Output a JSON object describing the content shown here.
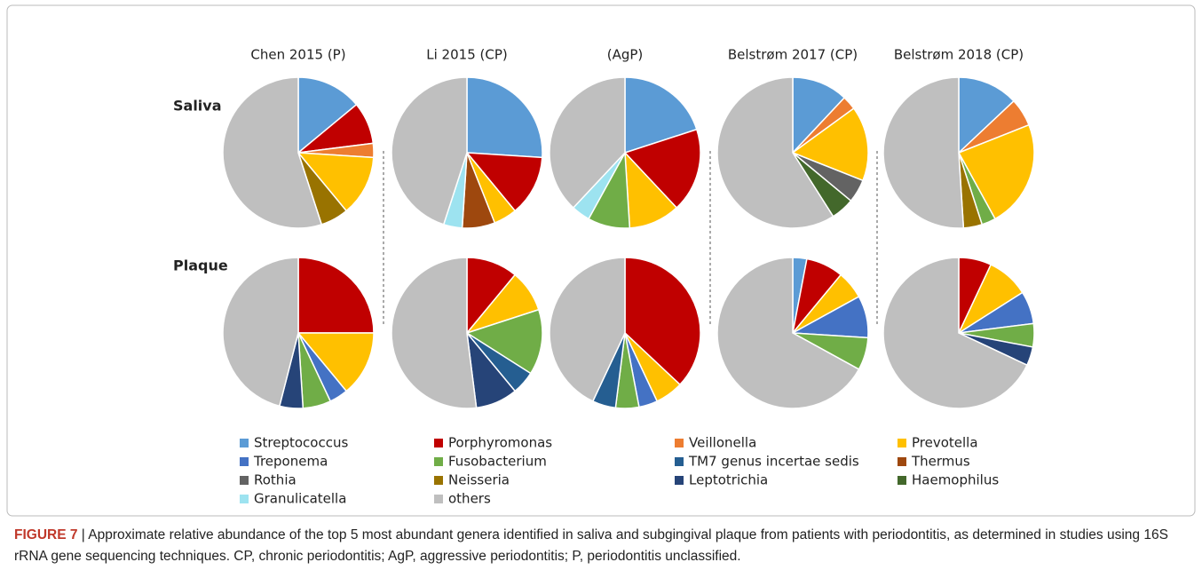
{
  "chart_data": {
    "type": "pie",
    "columns": [
      "Chen 2015 (P)",
      "Li 2015 (CP)",
      "(AgP)",
      "Belstrøm 2017 (CP)",
      "Belstrøm 2018 (CP)"
    ],
    "categories": [
      "Streptococcus",
      "Porphyromonas",
      "Veillonella",
      "Prevotella",
      "Treponema",
      "Fusobacterium",
      "TM7 genus incertae sedis",
      "Thermus",
      "Rothia",
      "Neisseria",
      "Leptotrichia",
      "Haemophilus",
      "Granulicatella",
      "others"
    ],
    "colors": [
      "#5b9bd5",
      "#c00000",
      "#ed7d31",
      "#ffc000",
      "#4472c4",
      "#70ad47",
      "#255e91",
      "#9e480e",
      "#636363",
      "#997300",
      "#264478",
      "#43682b",
      "#9de3f0",
      "#bfbfbf"
    ],
    "series": [
      {
        "name": "Saliva",
        "values": [
          [
            14,
            9,
            3,
            13,
            null,
            null,
            null,
            null,
            null,
            6,
            null,
            null,
            null,
            55
          ],
          [
            26,
            13,
            null,
            5,
            null,
            null,
            null,
            7,
            null,
            null,
            null,
            null,
            4,
            45
          ],
          [
            20,
            18,
            null,
            11,
            null,
            9,
            null,
            null,
            null,
            null,
            null,
            null,
            4,
            38
          ],
          [
            12,
            null,
            3,
            16,
            null,
            null,
            null,
            null,
            5,
            null,
            null,
            5,
            null,
            59
          ],
          [
            13,
            null,
            6,
            23,
            null,
            3,
            null,
            null,
            null,
            4,
            null,
            null,
            null,
            51
          ]
        ]
      },
      {
        "name": "Plaque",
        "values": [
          [
            null,
            25,
            null,
            14,
            4,
            6,
            null,
            null,
            null,
            null,
            5,
            null,
            null,
            46
          ],
          [
            null,
            11,
            null,
            9,
            null,
            14,
            5,
            null,
            null,
            null,
            9,
            null,
            null,
            52
          ],
          [
            null,
            37,
            null,
            6,
            4,
            5,
            5,
            null,
            null,
            null,
            null,
            null,
            null,
            43
          ],
          [
            3,
            8,
            null,
            6,
            9,
            7,
            null,
            null,
            null,
            null,
            null,
            null,
            null,
            67
          ],
          [
            null,
            7,
            null,
            9,
            7,
            5,
            null,
            null,
            null,
            null,
            4,
            null,
            null,
            68
          ]
        ]
      }
    ]
  },
  "caption": {
    "label": "FIGURE 7",
    "text": "| Approximate relative abundance of the top 5 most abundant genera identified in saliva and subgingival plaque from patients with periodontitis, as determined in studies using 16S rRNA gene sequencing techniques. CP, chronic periodontitis; AgP, aggressive periodontitis; P, periodontitis unclassified."
  }
}
